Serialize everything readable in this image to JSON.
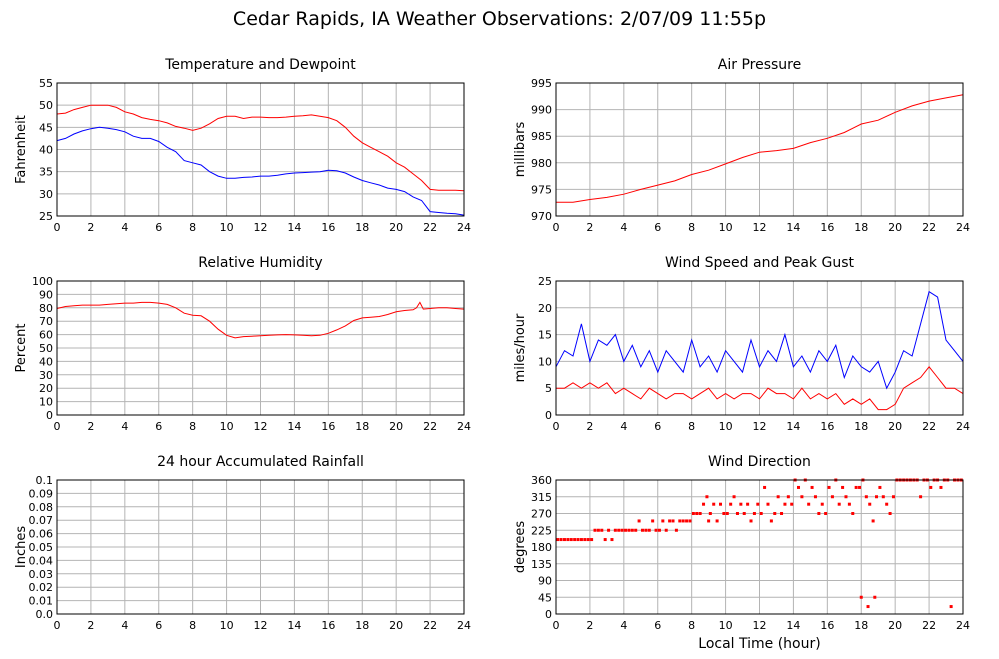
{
  "title": "Cedar Rapids, IA Weather Observations: 2/07/09 11:55p",
  "xlabel_bottom": "Local Time (hour)",
  "colors": {
    "red": "#ff0000",
    "blue": "#0000ff",
    "grid": "#b4b4b4",
    "frame": "#000000"
  },
  "chart_data": [
    {
      "id": "temp-dewpoint",
      "type": "line",
      "title": "Temperature and Dewpoint",
      "xlabel": "",
      "ylabel": "Fahrenheit",
      "xlim": [
        0,
        24
      ],
      "ylim": [
        25,
        55
      ],
      "xticks": [
        0,
        2,
        4,
        6,
        8,
        10,
        12,
        14,
        16,
        18,
        20,
        22,
        24
      ],
      "yticks": [
        25,
        30,
        35,
        40,
        45,
        50,
        55
      ],
      "grid": true,
      "x": [
        0,
        0.5,
        1,
        1.5,
        2,
        2.5,
        3,
        3.5,
        4,
        4.5,
        5,
        5.5,
        6,
        6.5,
        7,
        7.5,
        8,
        8.5,
        9,
        9.5,
        10,
        10.5,
        11,
        11.5,
        12,
        12.5,
        13,
        13.5,
        14,
        14.5,
        15,
        15.5,
        16,
        16.5,
        17,
        17.5,
        18,
        18.5,
        19,
        19.5,
        20,
        20.5,
        21,
        21.5,
        22,
        22.5,
        23,
        23.5,
        24
      ],
      "series": [
        {
          "color": "#ff0000",
          "values": [
            48,
            48.2,
            49,
            49.5,
            50,
            50,
            50,
            49.5,
            48.5,
            48,
            47.2,
            46.8,
            46.5,
            46,
            45.2,
            44.8,
            44.3,
            44.8,
            45.8,
            47,
            47.5,
            47.5,
            47,
            47.3,
            47.3,
            47.2,
            47.2,
            47.3,
            47.5,
            47.6,
            47.8,
            47.5,
            47.2,
            46.5,
            45,
            43,
            41.5,
            40.5,
            39.5,
            38.5,
            37,
            36,
            34.5,
            33,
            31,
            30.8,
            30.8,
            30.8,
            30.7
          ]
        },
        {
          "color": "#0000ff",
          "values": [
            42,
            42.5,
            43.5,
            44.2,
            44.7,
            45,
            44.8,
            44.5,
            44,
            43,
            42.5,
            42.5,
            41.8,
            40.5,
            39.5,
            37.5,
            37,
            36.5,
            35,
            34,
            33.5,
            33.5,
            33.7,
            33.8,
            34,
            34,
            34.2,
            34.5,
            34.7,
            34.8,
            34.9,
            35,
            35.3,
            35.2,
            34.7,
            33.8,
            33,
            32.5,
            32,
            31.3,
            31,
            30.5,
            29.3,
            28.5,
            26,
            25.8,
            25.6,
            25.5,
            25.2
          ]
        }
      ]
    },
    {
      "id": "air-pressure",
      "type": "line",
      "title": "Air Pressure",
      "xlabel": "",
      "ylabel": "millibars",
      "xlim": [
        0,
        24
      ],
      "ylim": [
        970,
        995
      ],
      "xticks": [
        0,
        2,
        4,
        6,
        8,
        10,
        12,
        14,
        16,
        18,
        20,
        22,
        24
      ],
      "yticks": [
        970,
        975,
        980,
        985,
        990,
        995
      ],
      "grid": true,
      "x": [
        0,
        1,
        2,
        3,
        4,
        5,
        6,
        7,
        8,
        9,
        10,
        11,
        12,
        13,
        14,
        15,
        16,
        17,
        18,
        19,
        20,
        21,
        22,
        23,
        24
      ],
      "series": [
        {
          "color": "#ff0000",
          "values": [
            972.6,
            972.6,
            973.1,
            973.5,
            974.1,
            975,
            975.8,
            976.6,
            977.8,
            978.6,
            979.8,
            981,
            982,
            982.3,
            982.7,
            983.8,
            984.6,
            985.7,
            987.3,
            988,
            989.5,
            990.7,
            991.6,
            992.2,
            992.8
          ]
        }
      ]
    },
    {
      "id": "relative-humidity",
      "type": "line",
      "title": "Relative Humidity",
      "xlabel": "",
      "ylabel": "Percent",
      "xlim": [
        0,
        24
      ],
      "ylim": [
        0,
        100
      ],
      "xticks": [
        0,
        2,
        4,
        6,
        8,
        10,
        12,
        14,
        16,
        18,
        20,
        22,
        24
      ],
      "yticks": [
        0,
        10,
        20,
        30,
        40,
        50,
        60,
        70,
        80,
        90,
        100
      ],
      "grid": true,
      "x": [
        0,
        0.5,
        1,
        1.5,
        2,
        2.5,
        3,
        3.5,
        4,
        4.5,
        5,
        5.5,
        6,
        6.5,
        7,
        7.5,
        8,
        8.5,
        9,
        9.5,
        10,
        10.5,
        11,
        11.5,
        12,
        12.5,
        13,
        13.5,
        14,
        14.5,
        15,
        15.5,
        16,
        16.5,
        17,
        17.5,
        18,
        18.5,
        19,
        19.5,
        20,
        20.5,
        21,
        21.2,
        21.4,
        21.6,
        22,
        22.5,
        23,
        23.5,
        24
      ],
      "series": [
        {
          "color": "#ff0000",
          "values": [
            79.5,
            81,
            81.5,
            82,
            82,
            82,
            82.5,
            83,
            83.5,
            83.5,
            84,
            84,
            83.5,
            82.5,
            80,
            76,
            74.5,
            74,
            70,
            64,
            59.5,
            57.5,
            58.5,
            58.8,
            59.2,
            59.5,
            59.8,
            60,
            59.8,
            59.5,
            59.2,
            59.5,
            61,
            63.5,
            66.5,
            70.5,
            72.5,
            73,
            73.5,
            75,
            77,
            78,
            78.5,
            80,
            84,
            79,
            79.5,
            80,
            80,
            79.5,
            79
          ]
        }
      ]
    },
    {
      "id": "wind-speed-gust",
      "type": "line",
      "title": "Wind Speed and Peak Gust",
      "xlabel": "",
      "ylabel": "miles/hour",
      "xlim": [
        0,
        24
      ],
      "ylim": [
        0,
        25
      ],
      "xticks": [
        0,
        2,
        4,
        6,
        8,
        10,
        12,
        14,
        16,
        18,
        20,
        22,
        24
      ],
      "yticks": [
        0,
        5,
        10,
        15,
        20,
        25
      ],
      "grid": true,
      "x": [
        0,
        0.5,
        1,
        1.5,
        2,
        2.5,
        3,
        3.5,
        4,
        4.5,
        5,
        5.5,
        6,
        6.5,
        7,
        7.5,
        8,
        8.5,
        9,
        9.5,
        10,
        10.5,
        11,
        11.5,
        12,
        12.5,
        13,
        13.5,
        14,
        14.5,
        15,
        15.5,
        16,
        16.5,
        17,
        17.5,
        18,
        18.5,
        19,
        19.5,
        20,
        20.5,
        21,
        21.5,
        22,
        22.5,
        23,
        23.5,
        24
      ],
      "series": [
        {
          "color": "#0000ff",
          "values": [
            9,
            12,
            11,
            17,
            10,
            14,
            13,
            15,
            10,
            13,
            9,
            12,
            8,
            12,
            10,
            8,
            14,
            9,
            11,
            8,
            12,
            10,
            8,
            14,
            9,
            12,
            10,
            15,
            9,
            11,
            8,
            12,
            10,
            13,
            7,
            11,
            9,
            8,
            10,
            5,
            8,
            12,
            11,
            17,
            23,
            22,
            14,
            12,
            10
          ]
        },
        {
          "color": "#ff0000",
          "values": [
            5,
            5,
            6,
            5,
            6,
            5,
            6,
            4,
            5,
            4,
            3,
            5,
            4,
            3,
            4,
            4,
            3,
            4,
            5,
            3,
            4,
            3,
            4,
            4,
            3,
            5,
            4,
            4,
            3,
            5,
            3,
            4,
            3,
            4,
            2,
            3,
            2,
            3,
            1,
            1,
            2,
            5,
            6,
            7,
            9,
            7,
            5,
            5,
            4
          ]
        }
      ]
    },
    {
      "id": "accumulated-rainfall",
      "type": "line",
      "title": "24 hour Accumulated Rainfall",
      "xlabel": "",
      "ylabel": "Inches",
      "xlim": [
        0,
        24
      ],
      "ylim": [
        0,
        0.1
      ],
      "xticks": [
        0,
        2,
        4,
        6,
        8,
        10,
        12,
        14,
        16,
        18,
        20,
        22,
        24
      ],
      "yticks": [
        0.0,
        0.01,
        0.02,
        0.03,
        0.04,
        0.05,
        0.06,
        0.07,
        0.08,
        0.09,
        0.1
      ],
      "ytick_labels": [
        "0.0",
        "0.01",
        "0.02",
        "0.03",
        "0.04",
        "0.05",
        "0.06",
        "0.07",
        "0.08",
        "0.09",
        "0.1"
      ],
      "grid": true,
      "x": [
        0,
        24
      ],
      "series": [
        {
          "color": "#ff0000",
          "values": [
            0,
            0
          ]
        }
      ]
    },
    {
      "id": "wind-direction",
      "type": "scatter",
      "title": "Wind Direction",
      "xlabel": "Local Time (hour)",
      "ylabel": "degrees",
      "xlim": [
        0,
        24
      ],
      "ylim": [
        0,
        360
      ],
      "xticks": [
        0,
        2,
        4,
        6,
        8,
        10,
        12,
        14,
        16,
        18,
        20,
        22,
        24
      ],
      "yticks": [
        0,
        45,
        90,
        135,
        180,
        225,
        270,
        315,
        360
      ],
      "grid": true,
      "series": [
        {
          "color": "#ff0000",
          "points": [
            [
              0.1,
              200
            ],
            [
              0.3,
              200
            ],
            [
              0.5,
              200
            ],
            [
              0.7,
              200
            ],
            [
              0.9,
              200
            ],
            [
              1.1,
              200
            ],
            [
              1.3,
              200
            ],
            [
              1.5,
              200
            ],
            [
              1.7,
              200
            ],
            [
              1.9,
              200
            ],
            [
              2.1,
              200
            ],
            [
              2.3,
              225
            ],
            [
              2.5,
              225
            ],
            [
              2.7,
              225
            ],
            [
              2.9,
              200
            ],
            [
              3.1,
              225
            ],
            [
              3.3,
              200
            ],
            [
              3.5,
              225
            ],
            [
              3.7,
              225
            ],
            [
              3.9,
              225
            ],
            [
              4.1,
              225
            ],
            [
              4.3,
              225
            ],
            [
              4.5,
              225
            ],
            [
              4.7,
              225
            ],
            [
              4.9,
              250
            ],
            [
              5.1,
              225
            ],
            [
              5.3,
              225
            ],
            [
              5.5,
              225
            ],
            [
              5.7,
              250
            ],
            [
              5.9,
              225
            ],
            [
              6.1,
              225
            ],
            [
              6.3,
              250
            ],
            [
              6.5,
              225
            ],
            [
              6.7,
              250
            ],
            [
              6.9,
              250
            ],
            [
              7.1,
              225
            ],
            [
              7.3,
              250
            ],
            [
              7.5,
              250
            ],
            [
              7.7,
              250
            ],
            [
              7.9,
              250
            ],
            [
              8.1,
              270
            ],
            [
              8.3,
              270
            ],
            [
              8.5,
              270
            ],
            [
              8.7,
              295
            ],
            [
              8.9,
              315
            ],
            [
              9.0,
              250
            ],
            [
              9.1,
              270
            ],
            [
              9.3,
              295
            ],
            [
              9.5,
              250
            ],
            [
              9.7,
              295
            ],
            [
              9.9,
              270
            ],
            [
              10.1,
              270
            ],
            [
              10.3,
              295
            ],
            [
              10.5,
              315
            ],
            [
              10.7,
              270
            ],
            [
              10.9,
              295
            ],
            [
              11.1,
              270
            ],
            [
              11.3,
              295
            ],
            [
              11.5,
              250
            ],
            [
              11.7,
              270
            ],
            [
              11.9,
              295
            ],
            [
              12.1,
              270
            ],
            [
              12.3,
              340
            ],
            [
              12.5,
              295
            ],
            [
              12.7,
              250
            ],
            [
              12.9,
              270
            ],
            [
              13.1,
              315
            ],
            [
              13.3,
              270
            ],
            [
              13.5,
              295
            ],
            [
              13.7,
              315
            ],
            [
              13.9,
              295
            ],
            [
              14.1,
              360
            ],
            [
              14.3,
              340
            ],
            [
              14.5,
              315
            ],
            [
              14.7,
              360
            ],
            [
              14.9,
              295
            ],
            [
              15.1,
              340
            ],
            [
              15.3,
              315
            ],
            [
              15.5,
              270
            ],
            [
              15.7,
              295
            ],
            [
              15.9,
              270
            ],
            [
              16.1,
              340
            ],
            [
              16.3,
              315
            ],
            [
              16.5,
              360
            ],
            [
              16.7,
              295
            ],
            [
              16.9,
              340
            ],
            [
              17.1,
              315
            ],
            [
              17.3,
              295
            ],
            [
              17.5,
              270
            ],
            [
              17.7,
              340
            ],
            [
              17.9,
              340
            ],
            [
              18.0,
              45
            ],
            [
              18.1,
              360
            ],
            [
              18.3,
              315
            ],
            [
              18.4,
              20
            ],
            [
              18.5,
              295
            ],
            [
              18.7,
              250
            ],
            [
              18.8,
              45
            ],
            [
              18.9,
              315
            ],
            [
              19.1,
              340
            ],
            [
              19.3,
              315
            ],
            [
              19.5,
              295
            ],
            [
              19.7,
              270
            ],
            [
              19.9,
              315
            ],
            [
              20.1,
              360
            ],
            [
              20.3,
              360
            ],
            [
              20.5,
              360
            ],
            [
              20.7,
              360
            ],
            [
              20.9,
              360
            ],
            [
              21.1,
              360
            ],
            [
              21.3,
              360
            ],
            [
              21.5,
              315
            ],
            [
              21.7,
              360
            ],
            [
              21.9,
              360
            ],
            [
              22.1,
              340
            ],
            [
              22.3,
              360
            ],
            [
              22.5,
              360
            ],
            [
              22.7,
              340
            ],
            [
              22.9,
              360
            ],
            [
              23.1,
              360
            ],
            [
              23.3,
              20
            ],
            [
              23.5,
              360
            ],
            [
              23.7,
              360
            ],
            [
              23.9,
              360
            ]
          ]
        }
      ]
    }
  ]
}
